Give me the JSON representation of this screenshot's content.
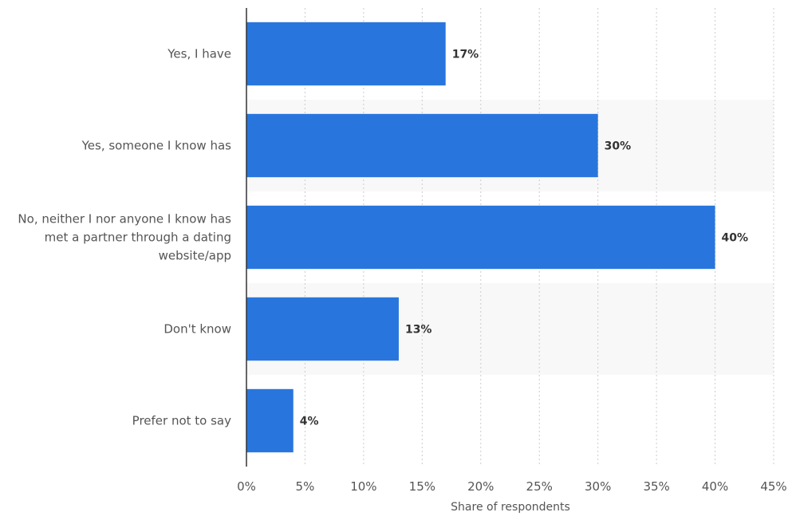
{
  "chart_data": {
    "type": "bar",
    "orientation": "horizontal",
    "categories": [
      "Yes, I have",
      "Yes, someone I know has",
      "No, neither I nor anyone I know has met a partner through a dating website/app",
      "Don't know",
      "Prefer not to say"
    ],
    "category_label_lines": [
      [
        "Yes, I have"
      ],
      [
        "Yes, someone I know has"
      ],
      [
        "No, neither I nor anyone I know has",
        "met a partner through a dating",
        "website/app"
      ],
      [
        "Don't know"
      ],
      [
        "Prefer not to say"
      ]
    ],
    "values": [
      17,
      30,
      40,
      13,
      4
    ],
    "data_labels": [
      "17%",
      "30%",
      "40%",
      "13%",
      "4%"
    ],
    "xlabel": "Share of respondents",
    "ylabel": "",
    "xlim": [
      0,
      45
    ],
    "ticks": [
      0,
      5,
      10,
      15,
      20,
      25,
      30,
      35,
      40,
      45
    ],
    "tick_labels": [
      "0%",
      "5%",
      "10%",
      "15%",
      "20%",
      "25%",
      "30%",
      "35%",
      "40%",
      "45%"
    ],
    "grid": true,
    "legend": "none",
    "colors": {
      "bar": "#2876dd",
      "band": "#f8f8f8",
      "grid": "#cccccc",
      "axis": "#333333"
    }
  }
}
